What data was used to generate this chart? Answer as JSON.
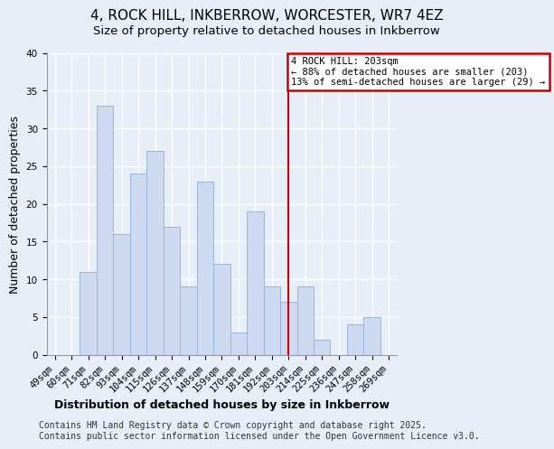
{
  "title": "4, ROCK HILL, INKBERROW, WORCESTER, WR7 4EZ",
  "subtitle": "Size of property relative to detached houses in Inkberrow",
  "xlabel": "Distribution of detached houses by size in Inkberrow",
  "ylabel": "Number of detached properties",
  "bar_labels": [
    "49sqm",
    "60sqm",
    "71sqm",
    "82sqm",
    "93sqm",
    "104sqm",
    "115sqm",
    "126sqm",
    "137sqm",
    "148sqm",
    "159sqm",
    "170sqm",
    "181sqm",
    "192sqm",
    "203sqm",
    "214sqm",
    "225sqm",
    "236sqm",
    "247sqm",
    "258sqm",
    "269sqm"
  ],
  "bar_values": [
    0,
    0,
    11,
    33,
    16,
    24,
    27,
    17,
    9,
    23,
    12,
    3,
    19,
    9,
    7,
    9,
    2,
    0,
    4,
    5,
    0
  ],
  "bar_color": "#ccd9f0",
  "bar_edge_color": "#9ab5d8",
  "ylim": [
    0,
    40
  ],
  "yticks": [
    0,
    5,
    10,
    15,
    20,
    25,
    30,
    35,
    40
  ],
  "vline_index": 14,
  "vline_color": "#cc0000",
  "annotation_title": "4 ROCK HILL: 203sqm",
  "annotation_line1": "← 88% of detached houses are smaller (203)",
  "annotation_line2": "13% of semi-detached houses are larger (29) →",
  "annotation_box_color": "#cc0000",
  "footer_line1": "Contains HM Land Registry data © Crown copyright and database right 2025.",
  "footer_line2": "Contains public sector information licensed under the Open Government Licence v3.0.",
  "background_color": "#e8eef8",
  "grid_color": "#ffffff",
  "title_fontsize": 11,
  "subtitle_fontsize": 9.5,
  "axis_label_fontsize": 9,
  "tick_fontsize": 7.5,
  "footer_fontsize": 7
}
